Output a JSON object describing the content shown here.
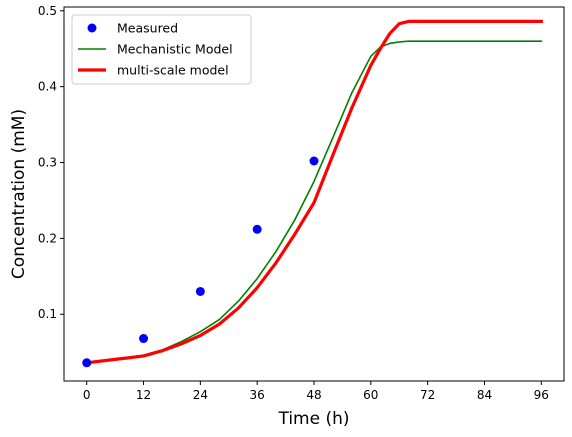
{
  "chart_data": {
    "type": "line",
    "title": "",
    "xlabel": "Time (h)",
    "ylabel": "Concentration (mM)",
    "xlim": [
      -4.8,
      100.8
    ],
    "ylim": [
      0.012,
      0.505
    ],
    "xticks": [
      0,
      12,
      24,
      36,
      48,
      60,
      72,
      84,
      96
    ],
    "yticks": [
      0.1,
      0.2,
      0.3,
      0.4,
      0.5
    ],
    "xtick_labels": [
      "0",
      "12",
      "24",
      "36",
      "48",
      "60",
      "72",
      "84",
      "96"
    ],
    "ytick_labels": [
      "0.1",
      "0.2",
      "0.3",
      "0.4",
      "0.5"
    ],
    "grid": false,
    "legend_position": "upper-left",
    "series": [
      {
        "name": "Measured",
        "kind": "markers",
        "color": "#0000ff",
        "x": [
          0,
          12,
          24,
          36,
          48
        ],
        "y": [
          0.036,
          0.068,
          0.13,
          0.212,
          0.302
        ]
      },
      {
        "name": "Mechanistic Model",
        "kind": "line",
        "color": "#008000",
        "x": [
          0,
          4,
          8,
          12,
          16,
          20,
          24,
          28,
          32,
          36,
          40,
          44,
          48,
          52,
          56,
          60,
          62,
          64,
          66,
          68,
          72,
          80,
          88,
          96
        ],
        "y": [
          0.036,
          0.039,
          0.042,
          0.046,
          0.053,
          0.064,
          0.077,
          0.093,
          0.117,
          0.147,
          0.183,
          0.225,
          0.275,
          0.333,
          0.392,
          0.44,
          0.452,
          0.457,
          0.459,
          0.46,
          0.46,
          0.46,
          0.46,
          0.46
        ]
      },
      {
        "name": "multi-scale model",
        "kind": "line",
        "color": "#ff0000",
        "x": [
          0,
          4,
          8,
          12,
          16,
          20,
          24,
          28,
          32,
          36,
          40,
          44,
          48,
          52,
          56,
          60,
          62,
          64,
          66,
          68,
          72,
          80,
          88,
          96
        ],
        "y": [
          0.036,
          0.039,
          0.042,
          0.045,
          0.052,
          0.061,
          0.072,
          0.087,
          0.108,
          0.135,
          0.168,
          0.206,
          0.247,
          0.31,
          0.372,
          0.428,
          0.45,
          0.47,
          0.483,
          0.486,
          0.486,
          0.486,
          0.486,
          0.486
        ]
      }
    ]
  }
}
